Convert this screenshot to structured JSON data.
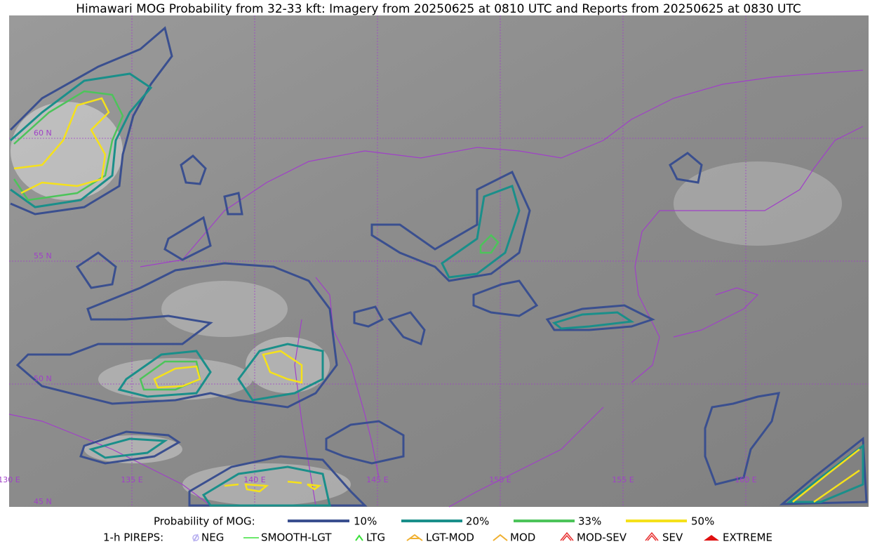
{
  "title": "Himawari MOG Probability from 32-33 kft: Imagery from 20250625 at 0810 UTC and Reports from 20250625 at 0830 UTC",
  "map": {
    "latitude_labels": [
      "60 N",
      "55 N",
      "50 N",
      "45 N"
    ],
    "longitude_labels": [
      "130 E",
      "135 E",
      "140 E",
      "145 E",
      "150 E",
      "155 E",
      "160 E"
    ]
  },
  "legend": {
    "probability": {
      "label": "Probability of MOG:",
      "items": [
        "10%",
        "20%",
        "33%",
        "50%"
      ]
    },
    "pireps": {
      "label": "1-h PIREPS:",
      "items": [
        "NEG",
        "SMOOTH-LGT",
        "LTG",
        "LGT-MOD",
        "MOD",
        "MOD-SEV",
        "SEV",
        "EXTREME"
      ]
    }
  }
}
